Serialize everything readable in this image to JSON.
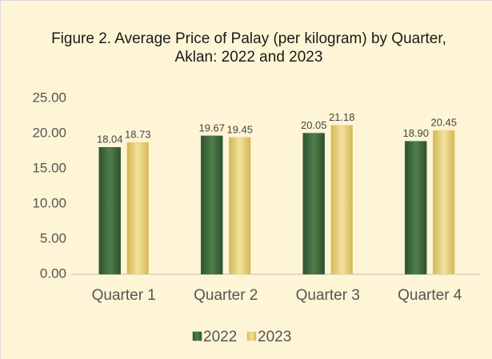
{
  "chart_data": {
    "type": "bar",
    "title": "Figure 2. Average Price of Palay (per kilogram) by Quarter, Aklan: 2022 and 2023",
    "categories": [
      "Quarter 1",
      "Quarter 2",
      "Quarter 3",
      "Quarter 4"
    ],
    "series": [
      {
        "name": "2022",
        "color": "#3f6b3c",
        "values": [
          18.04,
          19.67,
          20.05,
          18.9
        ],
        "value_labels": [
          "18.04",
          "19.67",
          "20.05",
          "18.90"
        ]
      },
      {
        "name": "2023",
        "color": "#e6cf75",
        "values": [
          18.73,
          19.45,
          21.18,
          20.45
        ],
        "value_labels": [
          "18.73",
          "19.45",
          "21.18",
          "20.45"
        ]
      }
    ],
    "ylim": [
      0,
      25
    ],
    "yticks": [
      {
        "value": 0,
        "label": "0.00"
      },
      {
        "value": 5,
        "label": "5.00"
      },
      {
        "value": 10,
        "label": "10.00"
      },
      {
        "value": 15,
        "label": "15.00"
      },
      {
        "value": 20,
        "label": "20.00"
      },
      {
        "value": 25,
        "label": "25.00"
      }
    ],
    "legend": "bottom"
  }
}
